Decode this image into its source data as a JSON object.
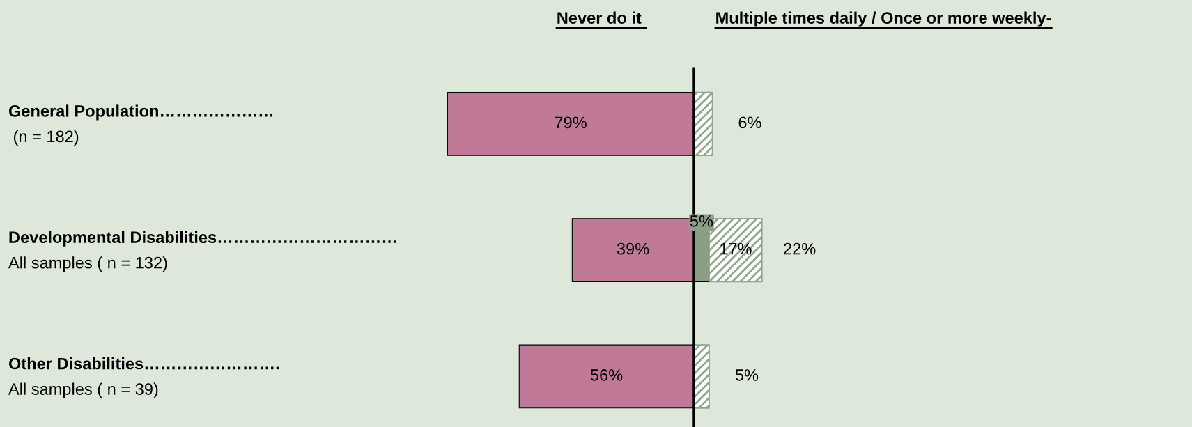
{
  "chart_data": [
    {
      "type": "bar",
      "orientation": "horizontal",
      "title": "Never do it ",
      "categories": [
        "General Population…………………\n (n = 182)",
        "Developmental Disabilities……………………………\nAll samples ( n = 132)",
        "Other Disabilities…………………….\nAll samples ( n = 39)"
      ],
      "series": [
        {
          "color": "#c07a98",
          "values": [
            79,
            39,
            56
          ],
          "value_labels": [
            "79%",
            "39%",
            "56%"
          ]
        }
      ],
      "legend": false
    },
    {
      "type": "bar",
      "orientation": "horizontal",
      "stacked": true,
      "title": "Multiple times daily / Once or more weekly-",
      "categories": [
        null,
        null,
        null
      ],
      "series": [
        {
          "color": "#8a9f84",
          "values": [
            null,
            5,
            null
          ],
          "value_labels": [
            null,
            "5%",
            null
          ]
        },
        {
          "color": "#8fa88a",
          "values": [
            6,
            17,
            5
          ],
          "value_labels": [
            null,
            "17%",
            null
          ]
        }
      ],
      "totals": [
        "6%",
        "22%",
        "5%"
      ],
      "ref_lines": [
        {
          "axis": "x",
          "value": 0,
          "color": "#000000"
        }
      ],
      "legend": false
    }
  ]
}
